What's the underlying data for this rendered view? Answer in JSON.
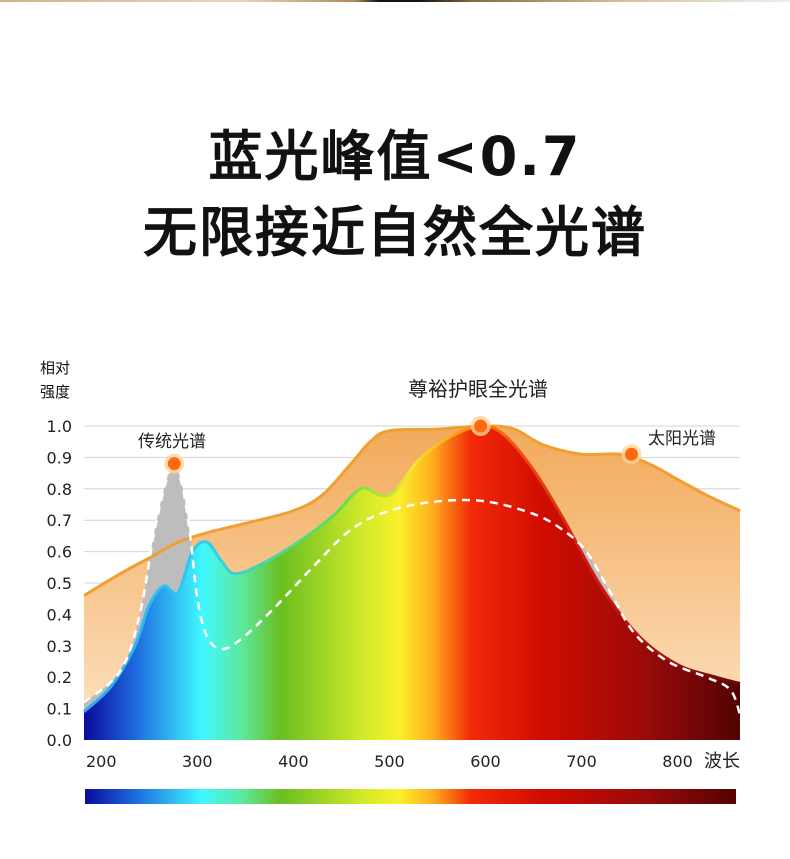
{
  "headline": {
    "line1": "蓝光峰值<0.7",
    "line2": "无限接近自然全光谱"
  },
  "chart_data": {
    "type": "area",
    "title": "",
    "ylabel": "相对强度",
    "xlabel": "波长",
    "xlim": [
      182,
      865
    ],
    "ylim": [
      0,
      1.0
    ],
    "xticks": [
      200,
      300,
      400,
      500,
      600,
      700,
      800
    ],
    "yticks": [
      "0.0",
      "0.1",
      "0.2",
      "0.3",
      "0.4",
      "0.5",
      "0.6",
      "0.7",
      "0.8",
      "0.9",
      "1.0"
    ],
    "grid": true,
    "annotations": {
      "traditional": "传统光谱",
      "full": "尊裕护眼全光谱",
      "sun": "太阳光谱"
    },
    "series": [
      {
        "name": "太阳光谱",
        "color": "#f0a030",
        "x": [
          182,
          220,
          250,
          280,
          310,
          350,
          400,
          430,
          460,
          480,
          500,
          550,
          600,
          630,
          660,
          700,
          740,
          770,
          800,
          830,
          865
        ],
        "y": [
          0.46,
          0.53,
          0.58,
          0.63,
          0.66,
          0.69,
          0.73,
          0.78,
          0.88,
          0.95,
          0.985,
          0.99,
          1.0,
          0.99,
          0.94,
          0.91,
          0.91,
          0.88,
          0.83,
          0.78,
          0.73
        ]
      },
      {
        "name": "尊裕护眼全光谱",
        "color": "#ff4d00",
        "x": [
          182,
          210,
          235,
          250,
          265,
          280,
          295,
          310,
          325,
          338,
          360,
          400,
          440,
          470,
          490,
          505,
          530,
          560,
          595,
          620,
          650,
          680,
          720,
          760,
          800,
          840,
          865
        ],
        "y": [
          0.09,
          0.17,
          0.3,
          0.43,
          0.49,
          0.47,
          0.6,
          0.63,
          0.57,
          0.53,
          0.55,
          0.62,
          0.71,
          0.8,
          0.78,
          0.79,
          0.89,
          0.96,
          1.0,
          0.97,
          0.86,
          0.71,
          0.49,
          0.33,
          0.24,
          0.2,
          0.18
        ]
      },
      {
        "name": "传统光谱",
        "color": "#ffffff",
        "x": [
          182,
          220,
          240,
          255,
          268,
          276,
          285,
          293,
          300,
          310,
          325,
          345,
          380,
          420,
          460,
          500,
          550,
          600,
          650,
          680,
          705,
          730,
          755,
          790,
          830,
          855,
          865
        ],
        "y": [
          0.12,
          0.22,
          0.4,
          0.66,
          0.83,
          0.88,
          0.8,
          0.64,
          0.45,
          0.33,
          0.29,
          0.32,
          0.42,
          0.55,
          0.67,
          0.73,
          0.76,
          0.76,
          0.72,
          0.67,
          0.6,
          0.47,
          0.34,
          0.25,
          0.2,
          0.16,
          0.08
        ]
      }
    ],
    "peaks": [
      {
        "series": "传统光谱",
        "x": 276,
        "y": 0.88
      },
      {
        "series": "尊裕护眼全光谱",
        "x": 595,
        "y": 1.0
      },
      {
        "series": "太阳光谱",
        "x": 752,
        "y": 0.91
      }
    ],
    "colorbar_range": [
      182,
      865
    ]
  }
}
